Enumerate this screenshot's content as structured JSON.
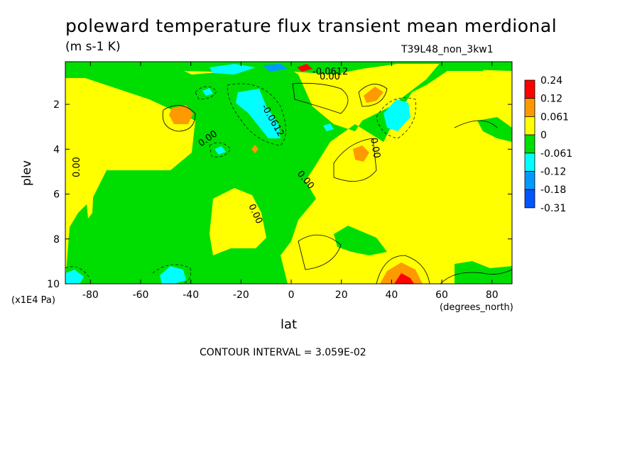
{
  "chart_data": {
    "type": "heatmap",
    "title": "poleward temperature flux transient mean merdional",
    "units": "(m s-1 K)",
    "run_label": "T39L48_non_3kw1",
    "xlabel": "lat",
    "x_units": "(degrees_north)",
    "ylabel": "plev",
    "y_units": "(x1E4 Pa)",
    "xlim": [
      -90,
      88
    ],
    "ylim": [
      10,
      0.1
    ],
    "x_ticks": [
      -80,
      -60,
      -40,
      -20,
      0,
      20,
      40,
      60,
      80
    ],
    "x_tick_labels": [
      "-80",
      "-60",
      "-40",
      "-20",
      "0",
      "20",
      "40",
      "60",
      "80"
    ],
    "y_ticks": [
      2,
      4,
      6,
      8,
      10
    ],
    "y_tick_labels": [
      "2",
      "4",
      "6",
      "8",
      "10"
    ],
    "colorbar": {
      "levels": [
        "0.24",
        "0.12",
        "0.061",
        "0",
        "-0.061",
        "-0.12",
        "-0.18",
        "-0.31"
      ],
      "colors": [
        "#ff0000",
        "#ff9900",
        "#ffff00",
        "#00dd00",
        "#00ffff",
        "#0099ff",
        "#0055ff"
      ]
    },
    "contour_labels": [
      "0.00",
      "-0.0612",
      "0.00",
      "0.00",
      "0.00",
      "0.00",
      "-0.0612",
      "0.00"
    ],
    "contour_interval": "CONTOUR INTERVAL = 3.059E-02"
  }
}
